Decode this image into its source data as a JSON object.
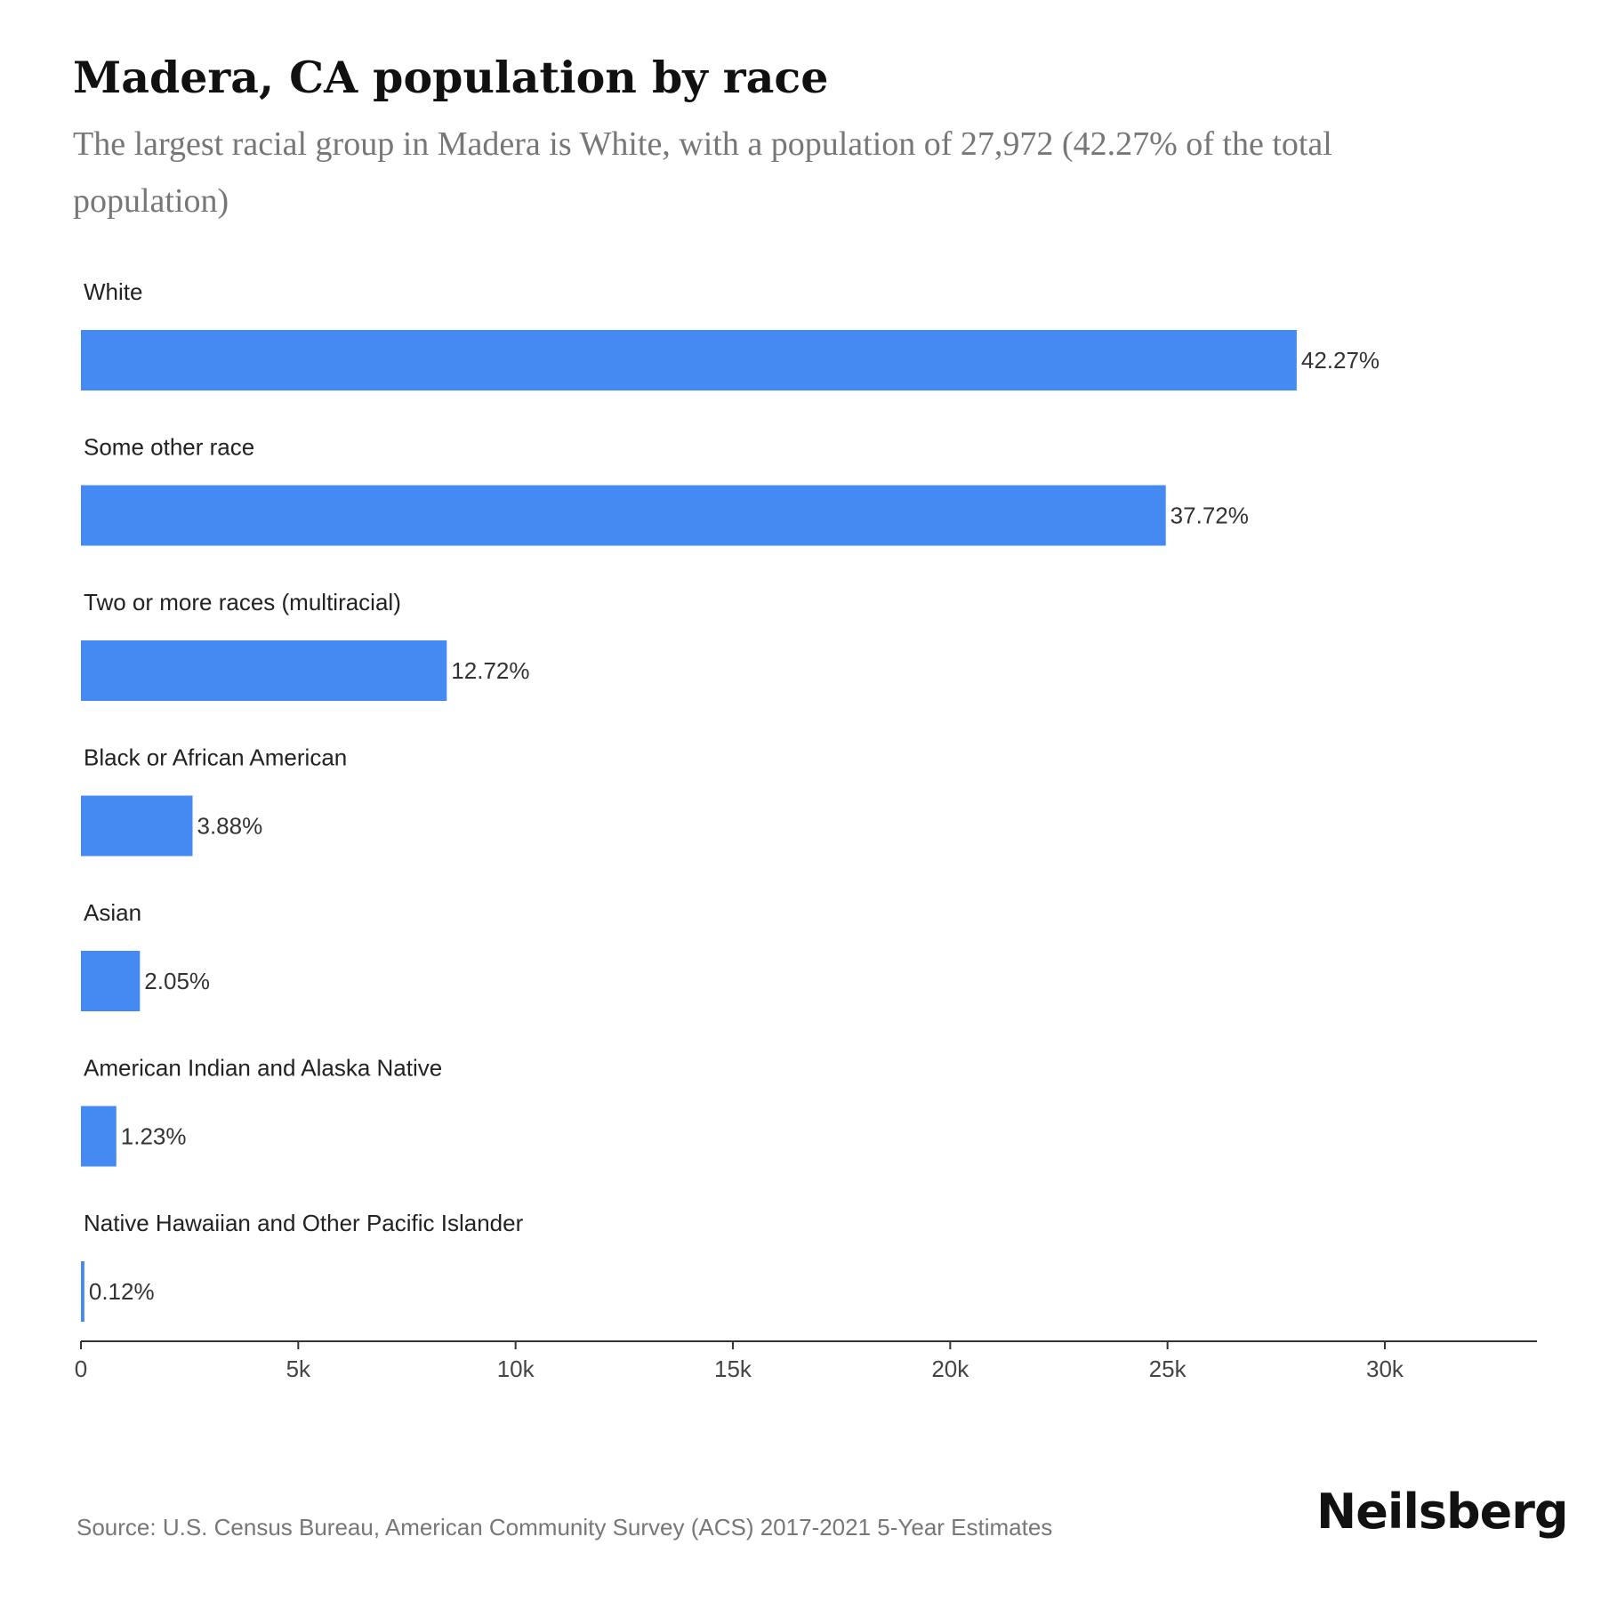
{
  "title": "Madera, CA population by race",
  "subtitle": "The largest racial group in Madera is White, with a population of 27,972 (42.27% of the total population)",
  "source": "Source: U.S. Census Bureau, American Community Survey (ACS) 2017-2021 5-Year Estimates",
  "brand": "Neilsberg",
  "colors": {
    "bar": "#4589f2",
    "axis": "#333333",
    "text": "#222222",
    "muted": "#777777"
  },
  "chart_data": {
    "type": "bar",
    "orientation": "horizontal",
    "categories": [
      "White",
      "Some other race",
      "Two or more races (multiracial)",
      "Black or African American",
      "Asian",
      "American Indian and Alaska Native",
      "Native Hawaiian and Other Pacific Islander"
    ],
    "values": [
      27972,
      24960,
      8417,
      2568,
      1357,
      814,
      79
    ],
    "data_labels": [
      "42.27%",
      "37.72%",
      "12.72%",
      "3.88%",
      "2.05%",
      "1.23%",
      "0.12%"
    ],
    "xlim": [
      0,
      33500
    ],
    "x_ticks": [
      0,
      5000,
      10000,
      15000,
      20000,
      25000,
      30000
    ],
    "x_tick_labels": [
      "0",
      "5k",
      "10k",
      "15k",
      "20k",
      "25k",
      "30k"
    ],
    "grid": false,
    "legend": false
  }
}
